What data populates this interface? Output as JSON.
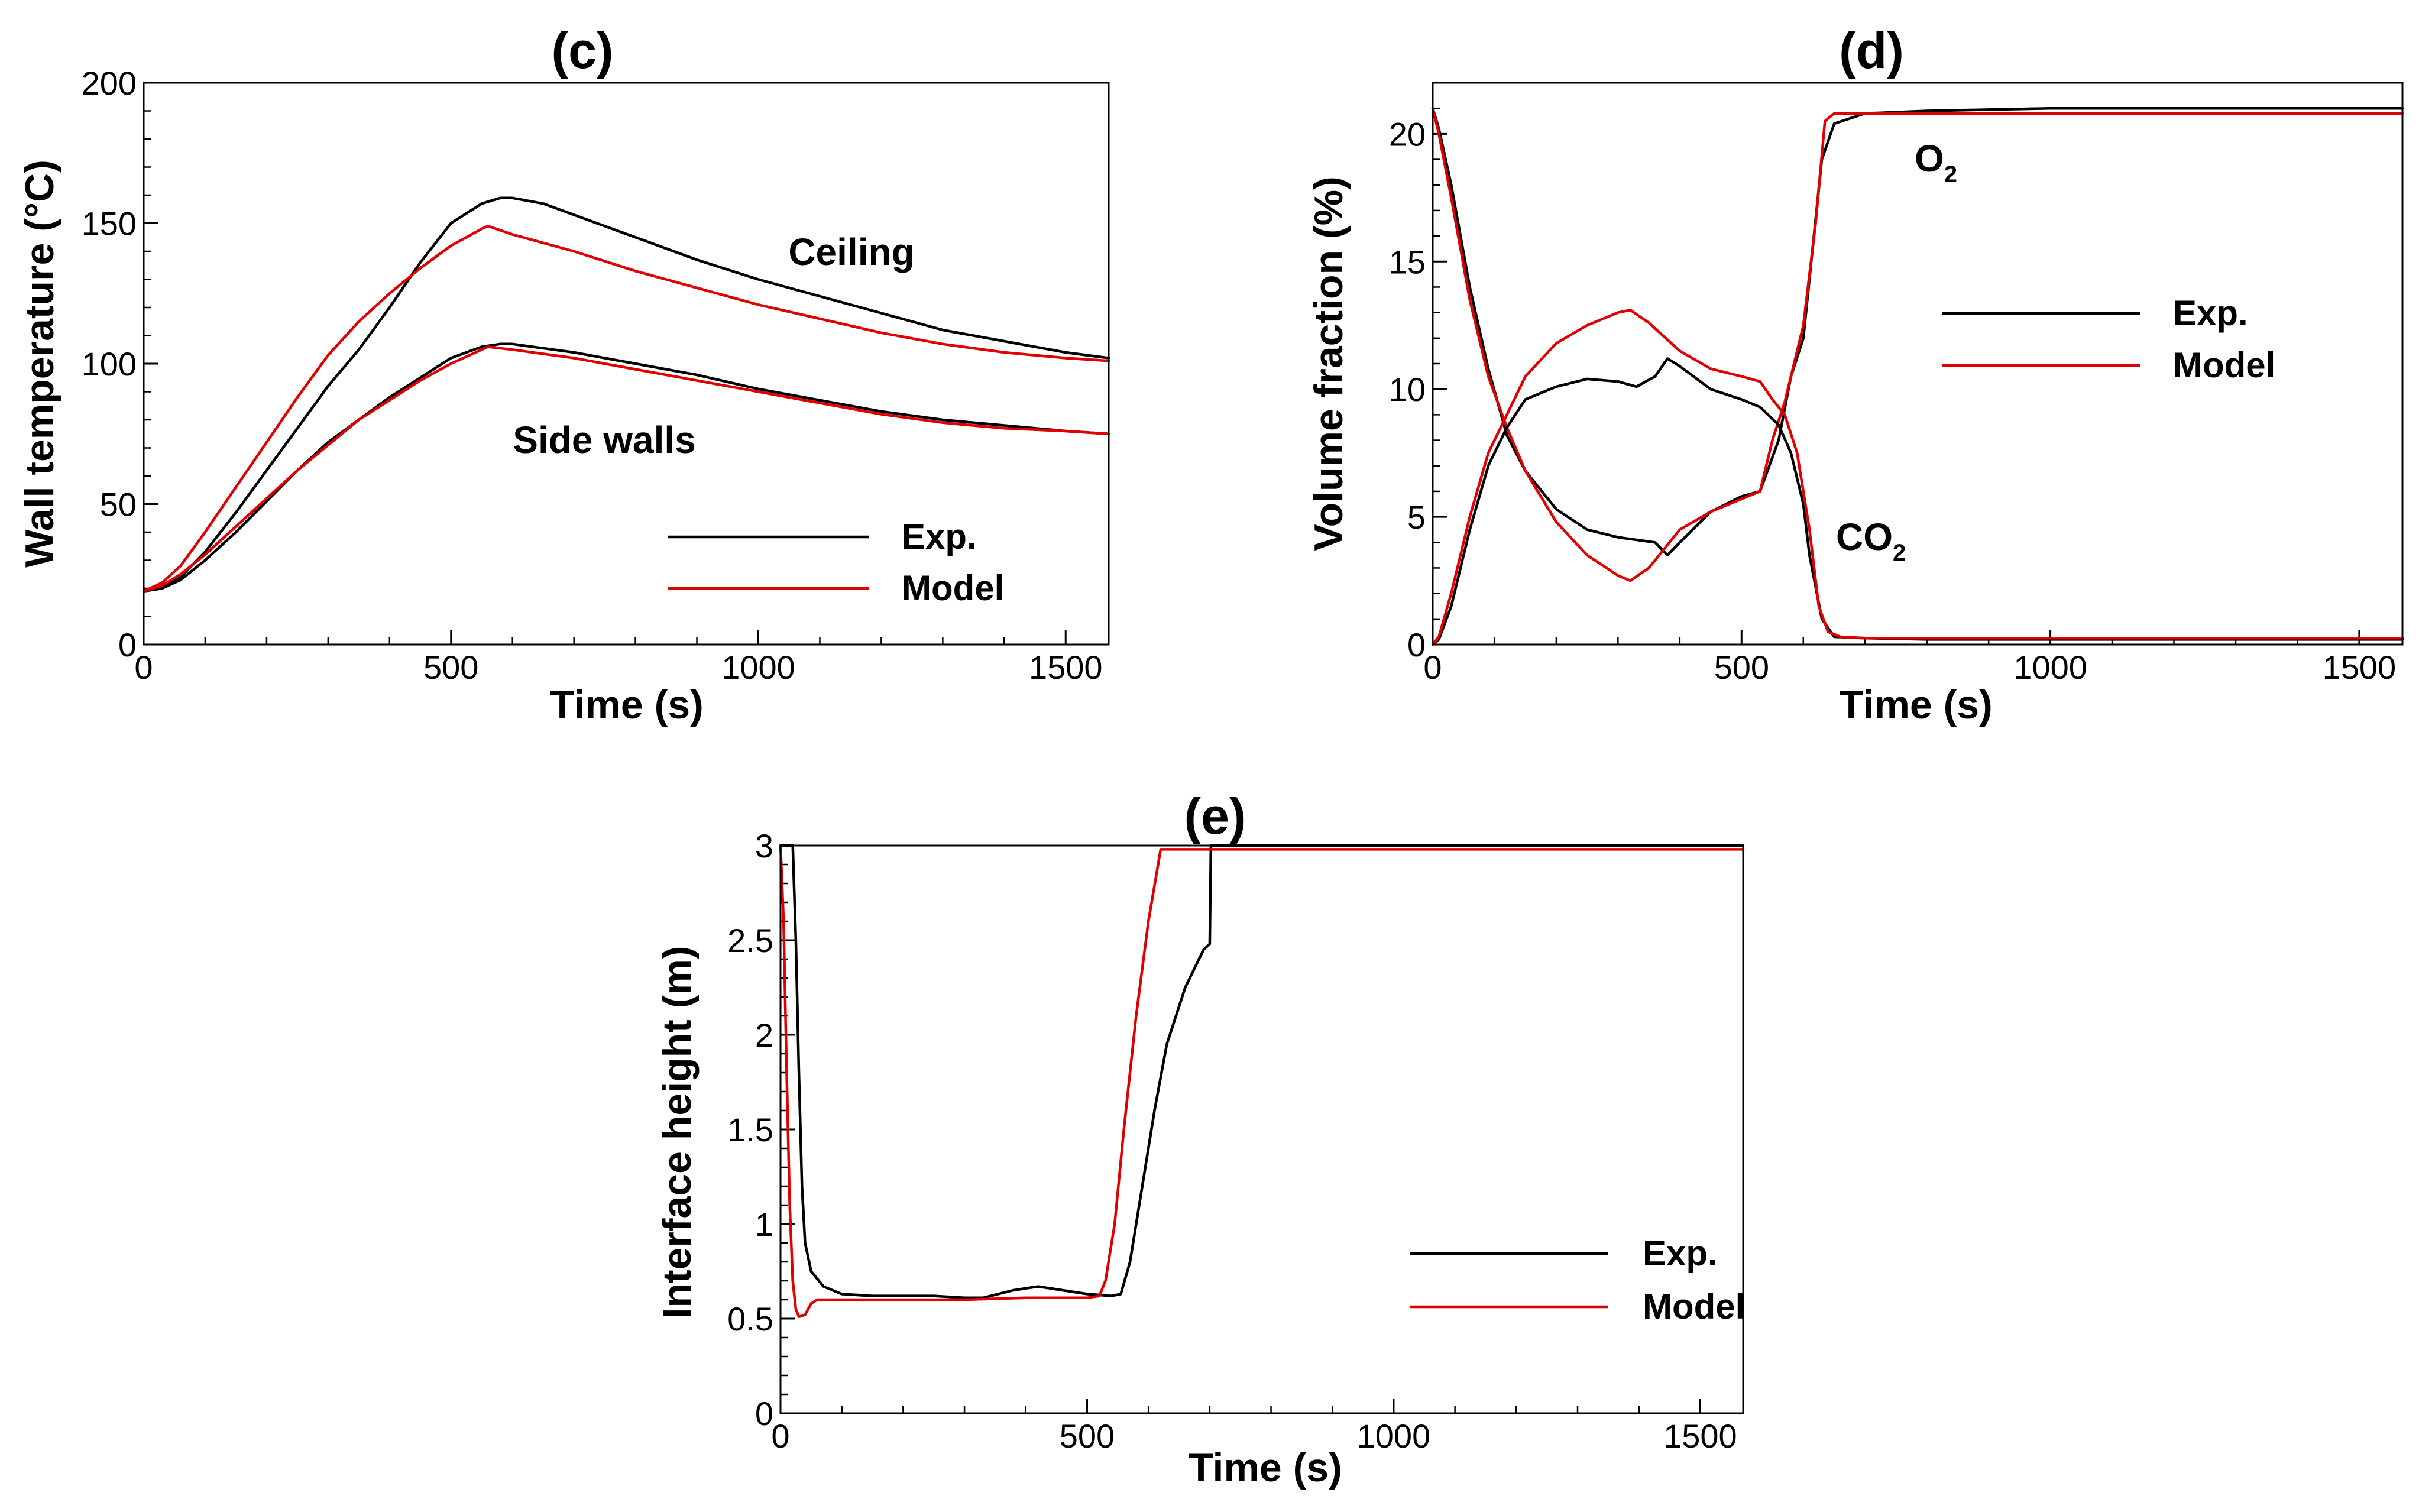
{
  "chart_data": [
    {
      "id": "c",
      "type": "line",
      "title": "(c)",
      "xlabel": "Time (s)",
      "ylabel": "Wall temperature (°C)",
      "xlim": [
        0,
        1570
      ],
      "ylim": [
        0,
        200
      ],
      "xticks": [
        0,
        500,
        1000,
        1500
      ],
      "yticks": [
        0,
        50,
        100,
        150,
        200
      ],
      "legend": {
        "position": "lower-right",
        "entries": [
          {
            "label": "Exp.",
            "color": "#000000"
          },
          {
            "label": "Model",
            "color": "#e00000"
          }
        ]
      },
      "annotations": [
        {
          "text": "Ceiling",
          "x": 1150,
          "y": 138
        },
        {
          "text": "Side walls",
          "x": 820,
          "y": 72
        }
      ],
      "series": [
        {
          "name": "Ceiling Exp.",
          "color": "#000000",
          "x": [
            0,
            30,
            60,
            100,
            150,
            200,
            250,
            300,
            350,
            400,
            450,
            500,
            550,
            580,
            600,
            650,
            700,
            800,
            900,
            1000,
            1100,
            1200,
            1300,
            1400,
            1500,
            1570
          ],
          "y": [
            19,
            20,
            24,
            33,
            47,
            62,
            77,
            92,
            105,
            120,
            136,
            150,
            157,
            159,
            159,
            157,
            153,
            145,
            137,
            130,
            124,
            118,
            112,
            108,
            104,
            102
          ]
        },
        {
          "name": "Ceiling Model",
          "color": "#e00000",
          "x": [
            0,
            30,
            60,
            100,
            150,
            200,
            250,
            300,
            350,
            400,
            450,
            500,
            550,
            560,
            600,
            700,
            800,
            900,
            1000,
            1100,
            1200,
            1300,
            1400,
            1500,
            1570
          ],
          "y": [
            19,
            22,
            28,
            40,
            56,
            72,
            88,
            103,
            115,
            125,
            134,
            142,
            148,
            149,
            146,
            140,
            133,
            127,
            121,
            116,
            111,
            107,
            104,
            102,
            101
          ]
        },
        {
          "name": "Side walls Exp.",
          "color": "#000000",
          "x": [
            0,
            30,
            60,
            100,
            150,
            200,
            250,
            300,
            350,
            400,
            450,
            500,
            550,
            580,
            600,
            700,
            800,
            900,
            1000,
            1100,
            1200,
            1300,
            1400,
            1500,
            1570
          ],
          "y": [
            19,
            20,
            23,
            30,
            40,
            51,
            62,
            72,
            80,
            88,
            95,
            102,
            106,
            107,
            107,
            104,
            100,
            96,
            91,
            87,
            83,
            80,
            78,
            76,
            75
          ]
        },
        {
          "name": "Side walls Model",
          "color": "#e00000",
          "x": [
            0,
            30,
            60,
            100,
            150,
            200,
            250,
            300,
            350,
            400,
            450,
            500,
            550,
            560,
            600,
            700,
            800,
            900,
            1000,
            1100,
            1200,
            1300,
            1400,
            1500,
            1570
          ],
          "y": [
            19,
            21,
            25,
            32,
            42,
            52,
            62,
            71,
            80,
            87,
            94,
            100,
            105,
            106,
            105,
            102,
            98,
            94,
            90,
            86,
            82,
            79,
            77,
            76,
            75
          ]
        }
      ]
    },
    {
      "id": "d",
      "type": "line",
      "title": "(d)",
      "xlabel": "Time (s)",
      "ylabel": "Volume fraction (%)",
      "xlim": [
        0,
        1570
      ],
      "ylim": [
        0,
        22
      ],
      "xticks": [
        0,
        500,
        1000,
        1500
      ],
      "yticks": [
        0,
        5,
        10,
        15,
        20
      ],
      "legend": {
        "position": "right",
        "entries": [
          {
            "label": "Exp.",
            "color": "#000000"
          },
          {
            "label": "Model",
            "color": "#e00000"
          }
        ]
      },
      "annotations": [
        {
          "text": "O",
          "subscript": "2",
          "x": 800,
          "y": 18.8
        },
        {
          "text": "CO",
          "subscript": "2",
          "x": 660,
          "y": 4.2
        }
      ],
      "series": [
        {
          "name": "O2 Exp.",
          "color": "#000000",
          "x": [
            0,
            10,
            30,
            60,
            90,
            120,
            150,
            200,
            250,
            300,
            330,
            360,
            380,
            400,
            450,
            500,
            530,
            560,
            580,
            600,
            615,
            630,
            650,
            700,
            800,
            1000,
            1200,
            1400,
            1570
          ],
          "y": [
            21,
            20.2,
            18,
            14,
            10.8,
            8.2,
            6.8,
            5.3,
            4.5,
            4.2,
            4.1,
            4.0,
            3.5,
            4.0,
            5.2,
            5.8,
            6.0,
            8.0,
            10.5,
            12.0,
            15.5,
            19.0,
            20.4,
            20.8,
            20.9,
            21.0,
            21.0,
            21.0,
            21.0
          ]
        },
        {
          "name": "O2 Model",
          "color": "#e00000",
          "x": [
            0,
            10,
            30,
            60,
            90,
            120,
            150,
            200,
            250,
            300,
            320,
            350,
            400,
            450,
            500,
            530,
            550,
            570,
            600,
            620,
            635,
            650,
            700,
            800,
            1000,
            1200,
            1400,
            1570
          ],
          "y": [
            21,
            20,
            17.5,
            13.5,
            10.5,
            8.5,
            6.8,
            4.8,
            3.5,
            2.7,
            2.5,
            3.0,
            4.5,
            5.2,
            5.7,
            6.0,
            8.0,
            9.5,
            12.5,
            16.5,
            20.5,
            20.8,
            20.8,
            20.8,
            20.8,
            20.8,
            20.8,
            20.8
          ]
        },
        {
          "name": "CO2 Exp.",
          "color": "#000000",
          "x": [
            0,
            10,
            30,
            60,
            90,
            120,
            150,
            200,
            250,
            300,
            330,
            360,
            380,
            400,
            450,
            500,
            530,
            560,
            580,
            600,
            610,
            630,
            650,
            700,
            800,
            1000,
            1200,
            1400,
            1570
          ],
          "y": [
            0,
            0.2,
            1.5,
            4.5,
            7.0,
            8.5,
            9.6,
            10.1,
            10.4,
            10.3,
            10.1,
            10.5,
            11.2,
            10.9,
            10.0,
            9.6,
            9.3,
            8.6,
            7.5,
            5.5,
            3.5,
            1.0,
            0.3,
            0.25,
            0.2,
            0.2,
            0.2,
            0.2,
            0.2
          ]
        },
        {
          "name": "CO2 Model",
          "color": "#e00000",
          "x": [
            0,
            10,
            30,
            60,
            90,
            120,
            150,
            200,
            250,
            300,
            320,
            350,
            400,
            450,
            500,
            530,
            550,
            570,
            590,
            610,
            625,
            640,
            660,
            700,
            800,
            1000,
            1200,
            1400,
            1570
          ],
          "y": [
            0,
            0.3,
            2.0,
            5.0,
            7.5,
            9.0,
            10.5,
            11.8,
            12.5,
            13.0,
            13.1,
            12.6,
            11.5,
            10.8,
            10.5,
            10.3,
            9.6,
            9.0,
            7.5,
            4.5,
            1.5,
            0.5,
            0.3,
            0.25,
            0.25,
            0.25,
            0.25,
            0.25,
            0.25
          ]
        }
      ]
    },
    {
      "id": "e",
      "type": "line",
      "title": "(e)",
      "xlabel": "Time (s)",
      "ylabel": "Interface height (m)",
      "xlim": [
        0,
        1570
      ],
      "ylim": [
        0,
        3
      ],
      "xticks": [
        0,
        500,
        1000,
        1500
      ],
      "yticks": [
        0,
        0.5,
        1,
        1.5,
        2,
        2.5,
        3
      ],
      "legend": {
        "position": "lower-right",
        "entries": [
          {
            "label": "Exp.",
            "color": "#000000"
          },
          {
            "label": "Model",
            "color": "#e00000"
          }
        ]
      },
      "series": [
        {
          "name": "Exp.",
          "color": "#000000",
          "x": [
            0,
            20,
            25,
            30,
            35,
            40,
            50,
            70,
            100,
            150,
            200,
            250,
            300,
            330,
            380,
            420,
            460,
            500,
            540,
            555,
            570,
            590,
            610,
            630,
            660,
            690,
            700,
            702,
            710,
            800,
            1000,
            1200,
            1400,
            1570
          ],
          "y": [
            3.0,
            3.0,
            2.5,
            1.8,
            1.2,
            0.9,
            0.75,
            0.67,
            0.63,
            0.62,
            0.62,
            0.62,
            0.61,
            0.61,
            0.65,
            0.67,
            0.65,
            0.63,
            0.62,
            0.63,
            0.8,
            1.2,
            1.6,
            1.95,
            2.25,
            2.45,
            2.48,
            3.0,
            3.0,
            3.0,
            3.0,
            3.0,
            3.0,
            3.0
          ]
        },
        {
          "name": "Model",
          "color": "#e00000",
          "x": [
            0,
            5,
            10,
            15,
            20,
            25,
            30,
            40,
            50,
            60,
            80,
            120,
            200,
            300,
            400,
            500,
            520,
            530,
            545,
            560,
            580,
            600,
            620,
            630,
            700,
            800,
            1000,
            1200,
            1400,
            1570
          ],
          "y": [
            3.0,
            2.6,
            1.8,
            1.1,
            0.7,
            0.55,
            0.51,
            0.52,
            0.58,
            0.6,
            0.6,
            0.6,
            0.6,
            0.6,
            0.61,
            0.61,
            0.62,
            0.7,
            1.0,
            1.5,
            2.1,
            2.6,
            2.98,
            2.98,
            2.98,
            2.98,
            2.98,
            2.98,
            2.98,
            2.98
          ]
        }
      ]
    }
  ]
}
